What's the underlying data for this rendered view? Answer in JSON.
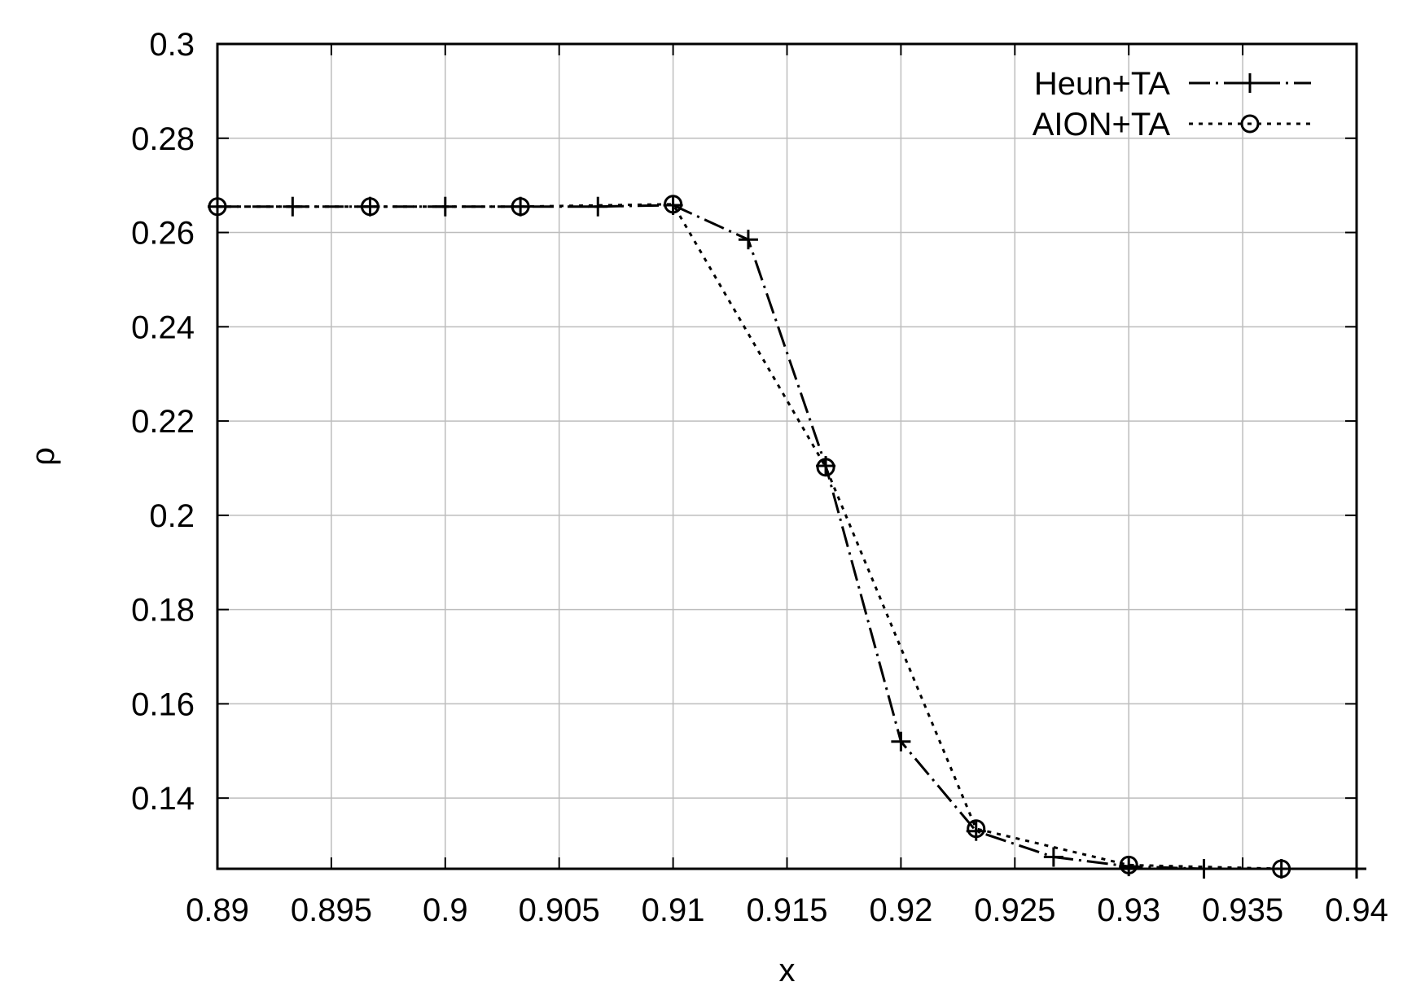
{
  "chart_data": {
    "type": "line",
    "title": "",
    "xlabel": "x",
    "ylabel": "ρ",
    "xlim": [
      0.89,
      0.94
    ],
    "ylim": [
      0.125,
      0.3
    ],
    "xticks": [
      0.89,
      0.895,
      0.9,
      0.905,
      0.91,
      0.915,
      0.92,
      0.925,
      0.93,
      0.935,
      0.94
    ],
    "xtick_labels": [
      "0.89",
      "0.895",
      "0.9",
      "0.905",
      "0.91",
      "0.915",
      "0.92",
      "0.925",
      "0.93",
      "0.935",
      "0.94"
    ],
    "yticks": [
      0.14,
      0.16,
      0.18,
      0.2,
      0.22,
      0.24,
      0.26,
      0.28,
      0.3
    ],
    "ytick_labels": [
      "0.14",
      "0.16",
      "0.18",
      "0.2",
      "0.22",
      "0.24",
      "0.26",
      "0.28",
      "0.3"
    ],
    "grid": true,
    "legend_position": "top-right",
    "series": [
      {
        "name": "Heun+TA",
        "marker": "plus",
        "dash": "long-dash-dot",
        "color": "#000000",
        "x": [
          0.89,
          0.8933,
          0.8967,
          0.9,
          0.9033,
          0.9067,
          0.91,
          0.9133,
          0.9167,
          0.92,
          0.9233,
          0.9267,
          0.93,
          0.9333,
          0.9367,
          0.94
        ],
        "y": [
          0.2655,
          0.2655,
          0.2655,
          0.2655,
          0.2655,
          0.2655,
          0.2658,
          0.2585,
          0.2105,
          0.152,
          0.133,
          0.1275,
          0.1255,
          0.125,
          0.125,
          0.125
        ]
      },
      {
        "name": "AION+TA",
        "marker": "circle",
        "dash": "dotted",
        "color": "#000000",
        "x": [
          0.89,
          0.8967,
          0.9033,
          0.91,
          0.9167,
          0.9233,
          0.93,
          0.9367
        ],
        "y": [
          0.2655,
          0.2655,
          0.2655,
          0.266,
          0.2102,
          0.1335,
          0.1258,
          0.125
        ]
      }
    ]
  }
}
